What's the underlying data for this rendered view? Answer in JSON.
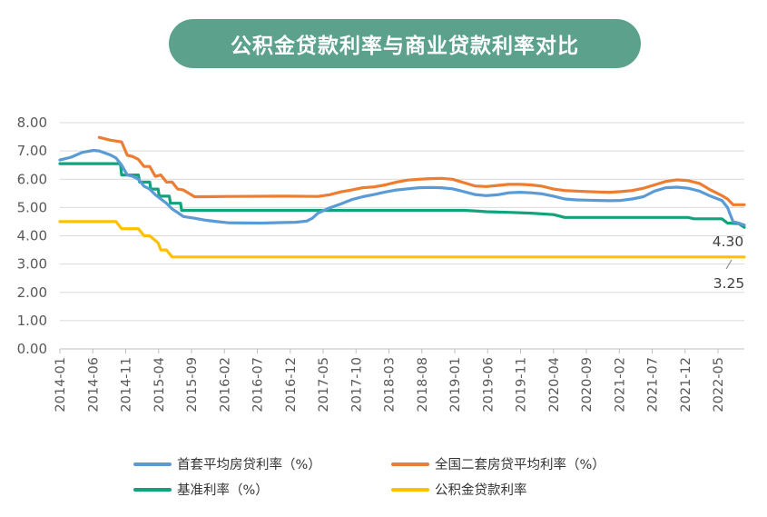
{
  "title": "公积金贷款利率与商业贷款利率对比",
  "chart_data": {
    "type": "line",
    "title": "公积金贷款利率与商业贷款利率对比",
    "ylim": [
      0,
      8
    ],
    "yticks": [
      "0.00",
      "1.00",
      "2.00",
      "3.00",
      "4.00",
      "5.00",
      "6.00",
      "7.00",
      "8.00"
    ],
    "x_range": [
      "2014-01",
      "2022-09"
    ],
    "x_tick_labels": [
      "2014-01",
      "2014-06",
      "2014-11",
      "2015-04",
      "2015-09",
      "2016-02",
      "2016-07",
      "2016-12",
      "2017-05",
      "2017-10",
      "2018-03",
      "2018-08",
      "2019-01",
      "2019-06",
      "2019-11",
      "2020-04",
      "2020-09",
      "2021-02",
      "2021-07",
      "2021-12",
      "2022-05"
    ],
    "grid": true,
    "legend_position": "bottom",
    "series": [
      {
        "name": "首套平均房贷利率（%）",
        "color": "#5b9bd5",
        "points": [
          [
            0,
            6.68
          ],
          [
            2,
            6.78
          ],
          [
            4,
            6.95
          ],
          [
            6,
            7.02
          ],
          [
            7,
            7.0
          ],
          [
            9,
            6.86
          ],
          [
            10,
            6.75
          ],
          [
            11,
            6.5
          ],
          [
            12,
            6.15
          ],
          [
            13,
            6.1
          ],
          [
            14,
            6.0
          ],
          [
            15,
            5.75
          ],
          [
            16,
            5.65
          ],
          [
            17,
            5.45
          ],
          [
            18,
            5.3
          ],
          [
            19,
            5.15
          ],
          [
            20,
            4.95
          ],
          [
            21,
            4.82
          ],
          [
            22,
            4.68
          ],
          [
            24,
            4.62
          ],
          [
            26,
            4.55
          ],
          [
            28,
            4.5
          ],
          [
            30,
            4.46
          ],
          [
            36,
            4.45
          ],
          [
            40,
            4.47
          ],
          [
            42,
            4.48
          ],
          [
            44,
            4.52
          ],
          [
            45,
            4.62
          ],
          [
            46,
            4.8
          ],
          [
            48,
            4.98
          ],
          [
            50,
            5.12
          ],
          [
            52,
            5.28
          ],
          [
            54,
            5.38
          ],
          [
            56,
            5.46
          ],
          [
            58,
            5.55
          ],
          [
            60,
            5.62
          ],
          [
            62,
            5.66
          ],
          [
            64,
            5.7
          ],
          [
            66,
            5.71
          ],
          [
            68,
            5.7
          ],
          [
            70,
            5.66
          ],
          [
            72,
            5.56
          ],
          [
            74,
            5.46
          ],
          [
            76,
            5.42
          ],
          [
            78,
            5.45
          ],
          [
            80,
            5.52
          ],
          [
            82,
            5.54
          ],
          [
            84,
            5.52
          ],
          [
            86,
            5.48
          ],
          [
            88,
            5.4
          ],
          [
            90,
            5.3
          ],
          [
            92,
            5.27
          ],
          [
            94,
            5.26
          ],
          [
            96,
            5.25
          ],
          [
            98,
            5.24
          ],
          [
            100,
            5.25
          ],
          [
            102,
            5.3
          ],
          [
            104,
            5.38
          ],
          [
            106,
            5.58
          ],
          [
            108,
            5.7
          ],
          [
            110,
            5.72
          ],
          [
            112,
            5.68
          ],
          [
            114,
            5.58
          ],
          [
            116,
            5.4
          ],
          [
            118,
            5.25
          ],
          [
            119,
            5.0
          ],
          [
            100.5,
            5.27
          ]
        ],
        "points_tail": [
          [
            119,
            5.0
          ],
          [
            120,
            4.5
          ],
          [
            121,
            4.45
          ],
          [
            122,
            4.38
          ]
        ]
      },
      {
        "name": "全国二套房贷平均利率（%）",
        "color": "#ed7d31",
        "points": [
          [
            7,
            7.48
          ],
          [
            9,
            7.38
          ],
          [
            10,
            7.35
          ],
          [
            11,
            7.32
          ],
          [
            12,
            6.85
          ],
          [
            13,
            6.8
          ],
          [
            14,
            6.7
          ],
          [
            15,
            6.45
          ],
          [
            16,
            6.45
          ],
          [
            17,
            6.1
          ],
          [
            18,
            6.15
          ],
          [
            19,
            5.9
          ],
          [
            20,
            5.9
          ],
          [
            21,
            5.65
          ],
          [
            22,
            5.62
          ],
          [
            24,
            5.38
          ],
          [
            26,
            5.38
          ],
          [
            30,
            5.39
          ],
          [
            40,
            5.4
          ],
          [
            46,
            5.39
          ],
          [
            48,
            5.45
          ],
          [
            50,
            5.55
          ],
          [
            52,
            5.62
          ],
          [
            54,
            5.7
          ],
          [
            56,
            5.73
          ],
          [
            58,
            5.8
          ],
          [
            60,
            5.9
          ],
          [
            62,
            5.97
          ],
          [
            64,
            6.0
          ],
          [
            66,
            6.02
          ],
          [
            68,
            6.03
          ],
          [
            70,
            6.0
          ],
          [
            72,
            5.88
          ],
          [
            74,
            5.76
          ],
          [
            76,
            5.74
          ],
          [
            78,
            5.78
          ],
          [
            80,
            5.82
          ],
          [
            82,
            5.82
          ],
          [
            84,
            5.8
          ],
          [
            86,
            5.75
          ],
          [
            88,
            5.65
          ],
          [
            90,
            5.6
          ],
          [
            92,
            5.58
          ],
          [
            94,
            5.56
          ],
          [
            96,
            5.55
          ],
          [
            98,
            5.54
          ],
          [
            100,
            5.56
          ],
          [
            102,
            5.6
          ],
          [
            104,
            5.68
          ],
          [
            106,
            5.8
          ],
          [
            108,
            5.92
          ],
          [
            110,
            5.98
          ],
          [
            112,
            5.95
          ],
          [
            114,
            5.85
          ],
          [
            116,
            5.62
          ],
          [
            118,
            5.42
          ],
          [
            119,
            5.3
          ],
          [
            120,
            5.1
          ],
          [
            122,
            5.1
          ]
        ]
      },
      {
        "name": "基准利率（%）",
        "color": "#12a37d",
        "points": [
          [
            0,
            6.55
          ],
          [
            10,
            6.55
          ],
          [
            10.8,
            6.55
          ],
          [
            11,
            6.15
          ],
          [
            14,
            6.15
          ],
          [
            14.2,
            5.9
          ],
          [
            16,
            5.9
          ],
          [
            16.2,
            5.65
          ],
          [
            17.5,
            5.65
          ],
          [
            17.7,
            5.4
          ],
          [
            19.5,
            5.4
          ],
          [
            19.7,
            5.15
          ],
          [
            21.5,
            5.15
          ],
          [
            21.7,
            4.9
          ],
          [
            72,
            4.9
          ],
          [
            74,
            4.88
          ],
          [
            76,
            4.85
          ],
          [
            80,
            4.83
          ],
          [
            84,
            4.8
          ],
          [
            88,
            4.75
          ],
          [
            90,
            4.65
          ],
          [
            96,
            4.65
          ],
          [
            112,
            4.65
          ],
          [
            113,
            4.6
          ],
          [
            118,
            4.6
          ],
          [
            119,
            4.45
          ],
          [
            121,
            4.43
          ],
          [
            122,
            4.3
          ]
        ]
      },
      {
        "name": "公积金贷款利率",
        "color": "#ffc000",
        "points": [
          [
            0,
            4.5
          ],
          [
            10,
            4.5
          ],
          [
            11,
            4.25
          ],
          [
            14,
            4.25
          ],
          [
            15,
            4.0
          ],
          [
            16,
            4.0
          ],
          [
            17.5,
            3.75
          ],
          [
            18,
            3.5
          ],
          [
            19,
            3.5
          ],
          [
            20,
            3.25
          ],
          [
            122,
            3.25
          ]
        ]
      }
    ],
    "annotations": [
      {
        "text": "4.30",
        "value": 4.3
      },
      {
        "text": "3.25",
        "value": 3.25
      }
    ]
  }
}
